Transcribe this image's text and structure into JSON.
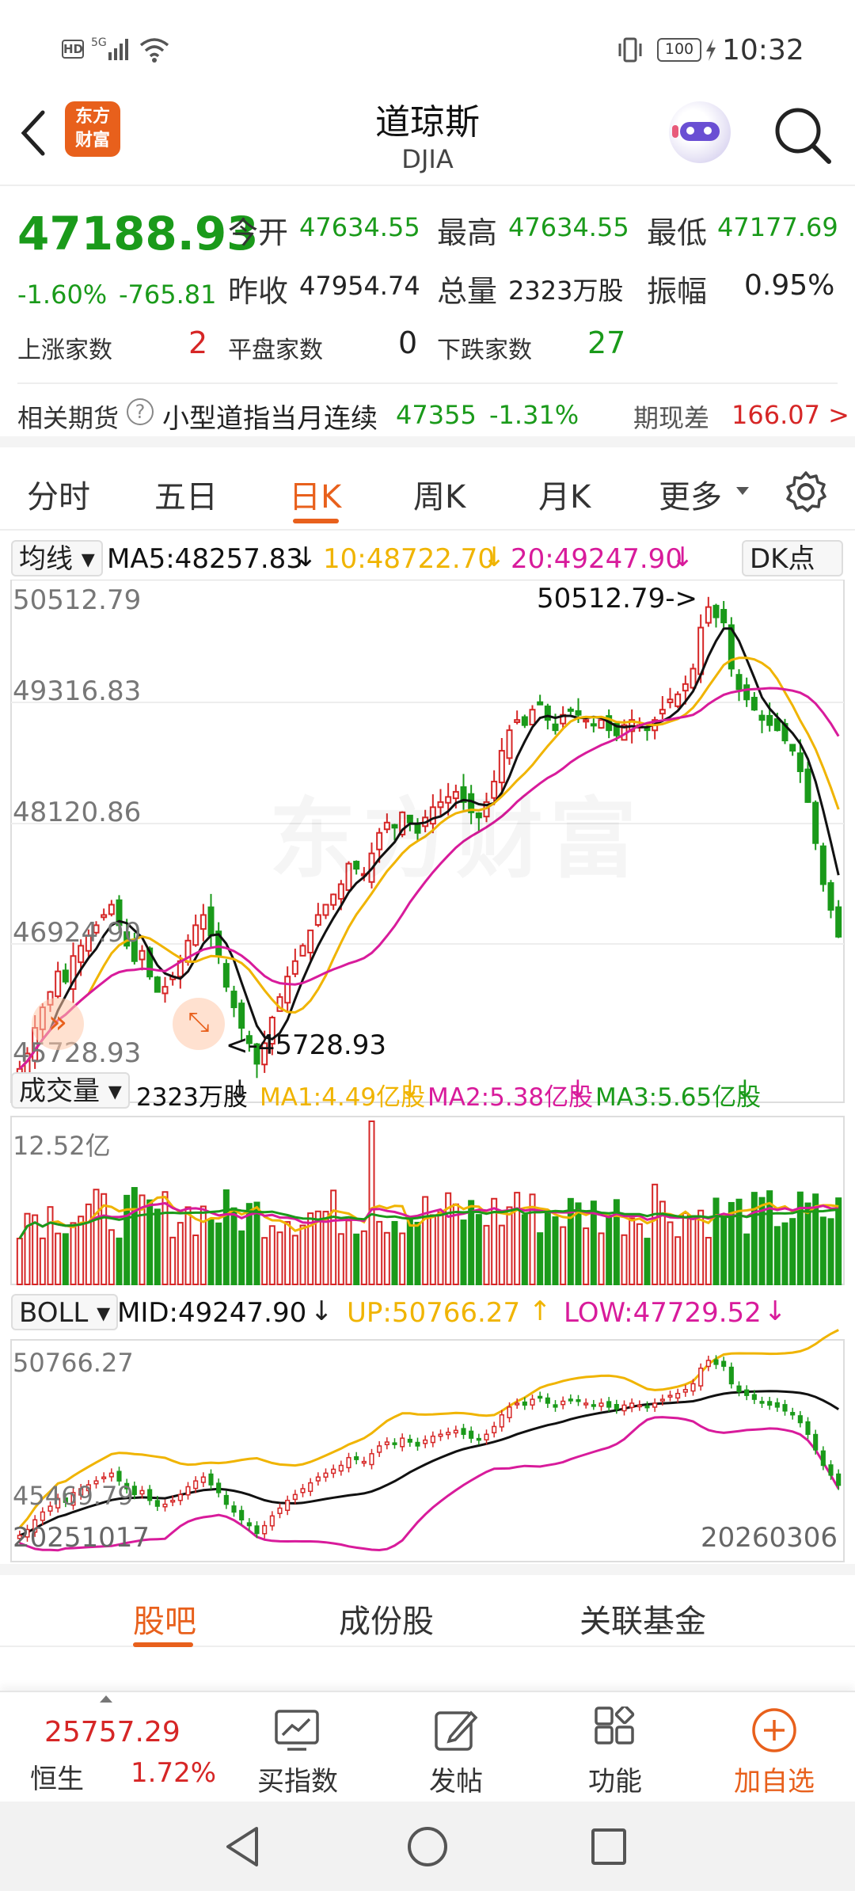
{
  "status_bar": {
    "left_icons": [
      "hd-icon",
      "5g-signal-icon",
      "wifi-icon"
    ],
    "battery": "100",
    "time": "10:32"
  },
  "header": {
    "logo_line1": "东方",
    "logo_line2": "财富",
    "title": "道琼斯",
    "subtitle": "DJIA"
  },
  "quote": {
    "price": "47188.93",
    "change_pct": "-1.60%",
    "change": "-765.81",
    "open_label": "今开",
    "open": "47634.55",
    "high_label": "最高",
    "high": "47634.55",
    "low_label": "最低",
    "low": "47177.69",
    "prev_label": "昨收",
    "prev": "47954.74",
    "vol_label": "总量",
    "vol": "2323万股",
    "amp_label": "振幅",
    "amp": "0.95%",
    "up_label": "上涨家数",
    "up": "2",
    "flat_label": "平盘家数",
    "flat": "0",
    "down_label": "下跌家数",
    "down": "27",
    "fut_label": "相关期货",
    "fut_name": "小型道指当月连续",
    "fut_price": "47355",
    "fut_pct": "-1.31%",
    "basis_label": "期现差",
    "basis": "166.07 >"
  },
  "tabs": [
    "分时",
    "五日",
    "日K",
    "周K",
    "月K",
    "更多"
  ],
  "active_tab": "日K",
  "kline": {
    "ma_selector": "均线",
    "ma5": "MA5:48257.83",
    "ma10": "10:48722.70",
    "ma20": "20:49247.90",
    "dk": "DK点",
    "y_labels": [
      "50512.79",
      "49316.83",
      "48120.86",
      "46924.90",
      "45728.93"
    ],
    "max_note": "50512.79->",
    "min_note": "<-45728.93",
    "watermark": "东方财富"
  },
  "volume": {
    "selector": "成交量",
    "total": "2323万股",
    "ma1": "MA1:4.49亿股",
    "ma2": "MA2:5.38亿股",
    "ma3": "MA3:5.65亿股",
    "y_label": "12.52亿"
  },
  "boll": {
    "selector": "BOLL",
    "mid": "MID:49247.90",
    "up": "UP:50766.27",
    "low": "LOW:47729.52",
    "y_top": "50766.27",
    "y_bottom": "45469.79"
  },
  "dates": {
    "start": "20251017",
    "end": "20260306"
  },
  "colors": {
    "up": "#d62626",
    "down": "#1a9a1a",
    "ma5": "#111111",
    "ma10": "#f0b400",
    "ma20": "#d81b9b",
    "accent": "#e8601c"
  },
  "chart_data": {
    "type": "candlestick",
    "title": "",
    "ylim": [
      45728.93,
      50512.79
    ],
    "closes": [
      45900,
      46050,
      46300,
      46500,
      46650,
      46850,
      46750,
      47000,
      47100,
      47200,
      47300,
      47400,
      47500,
      47300,
      47100,
      46950,
      47050,
      46800,
      46650,
      46700,
      46800,
      46950,
      47150,
      47300,
      47400,
      47200,
      47000,
      46700,
      46500,
      46300,
      46150,
      45950,
      46150,
      46400,
      46600,
      46800,
      46950,
      47100,
      47250,
      47400,
      47500,
      47600,
      47700,
      47900,
      47850,
      47800,
      48000,
      48200,
      48300,
      48250,
      48400,
      48300,
      48200,
      48350,
      48450,
      48500,
      48550,
      48600,
      48500,
      48400,
      48350,
      48500,
      48700,
      49000,
      49200,
      49300,
      49250,
      49400,
      49450,
      49300,
      49200,
      49350,
      49400,
      49350,
      49300,
      49250,
      49300,
      49200,
      49150,
      49250,
      49300,
      49250,
      49200,
      49300,
      49400,
      49500,
      49550,
      49650,
      49800,
      50200,
      50400,
      50300,
      50250,
      49800,
      49600,
      49500,
      49400,
      49300,
      49250,
      49200,
      49100,
      49000,
      48800,
      48500,
      48100,
      47700,
      47450,
      47188
    ]
  },
  "subtabs": [
    "股吧",
    "成份股",
    "关联基金"
  ],
  "bottom": {
    "index_value": "25757.29",
    "index_name": "恒生",
    "index_pct": "1.72%",
    "items": [
      "买指数",
      "发帖",
      "功能",
      "加自选"
    ]
  }
}
